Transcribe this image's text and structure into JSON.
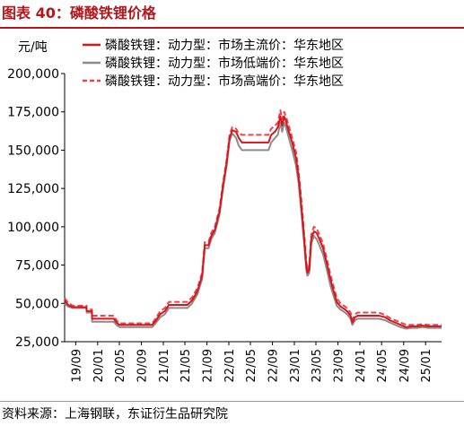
{
  "figure": {
    "title": "图表 40：磷酸铁锂价格",
    "source": "资料来源：上海钢联，东证衍生品研究院"
  },
  "colors": {
    "title": "#b4161b",
    "mainstream": "#d9161b",
    "low_end": "#8c8c8c",
    "high_end": "#f0444a",
    "axis": "#000000"
  },
  "chart_data": {
    "type": "line",
    "ylabel": "元/吨",
    "ylim": [
      25000,
      200000
    ],
    "yticks": [
      25000,
      50000,
      75000,
      100000,
      125000,
      150000,
      175000,
      200000
    ],
    "ytick_labels": [
      "25,000",
      "50,000",
      "75,000",
      "100,000",
      "125,000",
      "150,000",
      "175,000",
      "200,000"
    ],
    "xlim": [
      "2019-07-01",
      "2025-03-31"
    ],
    "xticks": [
      "2019-09-01",
      "2020-01-01",
      "2020-05-01",
      "2020-09-01",
      "2021-01-01",
      "2021-05-01",
      "2021-09-01",
      "2022-01-01",
      "2022-05-01",
      "2022-09-01",
      "2023-01-01",
      "2023-05-01",
      "2023-09-01",
      "2024-01-01",
      "2024-05-01",
      "2024-09-01",
      "2025-01-01"
    ],
    "xtick_labels": [
      "19/09",
      "20/01",
      "20/05",
      "20/09",
      "21/01",
      "21/05",
      "21/09",
      "22/01",
      "22/05",
      "22/09",
      "23/01",
      "23/05",
      "23/09",
      "24/01",
      "24/05",
      "24/09",
      "25/01"
    ],
    "grid": false,
    "legend_position": "top",
    "series": [
      {
        "name": "磷酸铁锂：动力型：市场主流价：华东地区",
        "color": "#d9161b",
        "style": "solid",
        "points": [
          [
            "2019-07-01",
            52000
          ],
          [
            "2019-07-20",
            49000
          ],
          [
            "2019-08-15",
            47500
          ],
          [
            "2019-10-31",
            47500
          ],
          [
            "2019-11-01",
            45000
          ],
          [
            "2019-11-30",
            45000
          ],
          [
            "2019-12-01",
            40000
          ],
          [
            "2020-03-31",
            40000
          ],
          [
            "2020-04-15",
            37500
          ],
          [
            "2020-05-01",
            36000
          ],
          [
            "2020-10-31",
            36000
          ],
          [
            "2020-11-15",
            38000
          ],
          [
            "2020-12-15",
            43000
          ],
          [
            "2021-01-10",
            45000
          ],
          [
            "2021-02-01",
            49000
          ],
          [
            "2021-03-10",
            49000
          ],
          [
            "2021-05-15",
            49000
          ],
          [
            "2021-06-10",
            52000
          ],
          [
            "2021-07-10",
            58000
          ],
          [
            "2021-08-05",
            68000
          ],
          [
            "2021-08-20",
            88000
          ],
          [
            "2021-09-10",
            88000
          ],
          [
            "2021-09-25",
            94000
          ],
          [
            "2021-10-15",
            98000
          ],
          [
            "2021-11-10",
            110000
          ],
          [
            "2021-12-01",
            128000
          ],
          [
            "2021-12-20",
            142000
          ],
          [
            "2022-01-05",
            158000
          ],
          [
            "2022-01-20",
            163000
          ],
          [
            "2022-02-10",
            162000
          ],
          [
            "2022-02-25",
            158000
          ],
          [
            "2022-03-15",
            155000
          ],
          [
            "2022-04-15",
            155000
          ],
          [
            "2022-06-01",
            155000
          ],
          [
            "2022-07-10",
            155000
          ],
          [
            "2022-08-10",
            155000
          ],
          [
            "2022-08-25",
            160000
          ],
          [
            "2022-09-15",
            162000
          ],
          [
            "2022-10-01",
            165000
          ],
          [
            "2022-10-15",
            172000
          ],
          [
            "2022-10-25",
            166000
          ],
          [
            "2022-11-05",
            172000
          ],
          [
            "2022-11-15",
            169000
          ],
          [
            "2022-12-01",
            162000
          ],
          [
            "2022-12-20",
            155000
          ],
          [
            "2023-01-10",
            145000
          ],
          [
            "2023-01-25",
            132000
          ],
          [
            "2023-02-10",
            112000
          ],
          [
            "2023-02-25",
            92000
          ],
          [
            "2023-03-08",
            75000
          ],
          [
            "2023-03-15",
            70000
          ],
          [
            "2023-03-25",
            72000
          ],
          [
            "2023-04-05",
            92000
          ],
          [
            "2023-04-20",
            97000
          ],
          [
            "2023-05-05",
            96000
          ],
          [
            "2023-05-20",
            92000
          ],
          [
            "2023-06-10",
            86000
          ],
          [
            "2023-07-01",
            76000
          ],
          [
            "2023-07-20",
            66000
          ],
          [
            "2023-08-10",
            57000
          ],
          [
            "2023-08-25",
            51000
          ],
          [
            "2023-09-15",
            48000
          ],
          [
            "2023-10-10",
            46000
          ],
          [
            "2023-10-25",
            44500
          ],
          [
            "2023-11-10",
            42000
          ],
          [
            "2023-11-20",
            37500
          ],
          [
            "2023-12-05",
            41000
          ],
          [
            "2023-12-20",
            42000
          ],
          [
            "2024-03-01",
            42000
          ],
          [
            "2024-04-15",
            42000
          ],
          [
            "2024-05-20",
            41000
          ],
          [
            "2024-06-15",
            39000
          ],
          [
            "2024-07-15",
            37500
          ],
          [
            "2024-08-15",
            36000
          ],
          [
            "2024-09-15",
            34500
          ],
          [
            "2024-10-15",
            35000
          ],
          [
            "2024-11-15",
            35000
          ],
          [
            "2024-12-15",
            35500
          ],
          [
            "2025-01-15",
            35000
          ],
          [
            "2025-03-31",
            35000
          ]
        ]
      },
      {
        "name": "磷酸铁锂：动力型：市场低端价：华东地区",
        "color": "#8c8c8c",
        "style": "solid",
        "points": [
          [
            "2019-07-01",
            50000
          ],
          [
            "2019-07-20",
            48000
          ],
          [
            "2019-08-15",
            47000
          ],
          [
            "2019-10-31",
            47000
          ],
          [
            "2019-11-01",
            44000
          ],
          [
            "2019-11-30",
            44000
          ],
          [
            "2019-12-01",
            38000
          ],
          [
            "2020-03-31",
            38000
          ],
          [
            "2020-04-15",
            36000
          ],
          [
            "2020-05-01",
            34500
          ],
          [
            "2020-10-31",
            34500
          ],
          [
            "2020-11-15",
            36500
          ],
          [
            "2020-12-15",
            41000
          ],
          [
            "2021-01-10",
            43000
          ],
          [
            "2021-02-01",
            47000
          ],
          [
            "2021-03-10",
            47000
          ],
          [
            "2021-05-15",
            47000
          ],
          [
            "2021-06-10",
            50000
          ],
          [
            "2021-07-10",
            56000
          ],
          [
            "2021-08-05",
            66000
          ],
          [
            "2021-08-20",
            86000
          ],
          [
            "2021-09-10",
            86000
          ],
          [
            "2021-09-25",
            92000
          ],
          [
            "2021-10-15",
            96000
          ],
          [
            "2021-11-10",
            108000
          ],
          [
            "2021-12-01",
            126000
          ],
          [
            "2021-12-20",
            140000
          ],
          [
            "2022-01-05",
            156000
          ],
          [
            "2022-01-20",
            161000
          ],
          [
            "2022-02-10",
            158000
          ],
          [
            "2022-02-25",
            153000
          ],
          [
            "2022-03-15",
            150000
          ],
          [
            "2022-04-15",
            150000
          ],
          [
            "2022-06-01",
            150000
          ],
          [
            "2022-07-10",
            150000
          ],
          [
            "2022-08-10",
            150000
          ],
          [
            "2022-08-25",
            155000
          ],
          [
            "2022-09-15",
            158000
          ],
          [
            "2022-10-01",
            160000
          ],
          [
            "2022-10-15",
            168000
          ],
          [
            "2022-10-25",
            162000
          ],
          [
            "2022-11-05",
            168000
          ],
          [
            "2022-11-15",
            165000
          ],
          [
            "2022-12-01",
            158000
          ],
          [
            "2022-12-20",
            150000
          ],
          [
            "2023-01-10",
            140000
          ],
          [
            "2023-01-25",
            128000
          ],
          [
            "2023-02-10",
            108000
          ],
          [
            "2023-02-25",
            88000
          ],
          [
            "2023-03-08",
            72000
          ],
          [
            "2023-03-15",
            68000
          ],
          [
            "2023-03-25",
            70000
          ],
          [
            "2023-04-05",
            89000
          ],
          [
            "2023-04-20",
            94000
          ],
          [
            "2023-05-05",
            92000
          ],
          [
            "2023-05-20",
            88000
          ],
          [
            "2023-06-10",
            82000
          ],
          [
            "2023-07-01",
            72000
          ],
          [
            "2023-07-20",
            62000
          ],
          [
            "2023-08-10",
            54000
          ],
          [
            "2023-08-25",
            48500
          ],
          [
            "2023-09-15",
            46000
          ],
          [
            "2023-10-10",
            44000
          ],
          [
            "2023-10-25",
            42500
          ],
          [
            "2023-11-10",
            40000
          ],
          [
            "2023-11-20",
            36000
          ],
          [
            "2023-12-05",
            39000
          ],
          [
            "2023-12-20",
            40000
          ],
          [
            "2024-03-01",
            40000
          ],
          [
            "2024-04-15",
            40000
          ],
          [
            "2024-05-20",
            39000
          ],
          [
            "2024-06-15",
            37500
          ],
          [
            "2024-07-15",
            36000
          ],
          [
            "2024-08-15",
            34500
          ],
          [
            "2024-09-15",
            33500
          ],
          [
            "2024-10-15",
            34000
          ],
          [
            "2024-11-15",
            34000
          ],
          [
            "2024-12-15",
            34500
          ],
          [
            "2025-01-15",
            34000
          ],
          [
            "2025-03-31",
            34000
          ]
        ]
      },
      {
        "name": "磷酸铁锂：动力型：市场高端价：华东地区",
        "color": "#f0444a",
        "style": "dashed",
        "points": [
          [
            "2019-07-01",
            53500
          ],
          [
            "2019-07-20",
            50500
          ],
          [
            "2019-08-15",
            48500
          ],
          [
            "2019-10-31",
            48500
          ],
          [
            "2019-11-01",
            46000
          ],
          [
            "2019-11-30",
            46000
          ],
          [
            "2019-12-01",
            42000
          ],
          [
            "2020-03-31",
            42000
          ],
          [
            "2020-04-15",
            39000
          ],
          [
            "2020-05-01",
            37000
          ],
          [
            "2020-10-31",
            37000
          ],
          [
            "2020-11-15",
            39500
          ],
          [
            "2020-12-15",
            45000
          ],
          [
            "2021-01-10",
            47000
          ],
          [
            "2021-02-01",
            51000
          ],
          [
            "2021-03-10",
            51000
          ],
          [
            "2021-05-15",
            51000
          ],
          [
            "2021-06-10",
            54000
          ],
          [
            "2021-07-10",
            60000
          ],
          [
            "2021-08-05",
            70000
          ],
          [
            "2021-08-20",
            90000
          ],
          [
            "2021-09-10",
            90000
          ],
          [
            "2021-09-25",
            96000
          ],
          [
            "2021-10-15",
            100000
          ],
          [
            "2021-11-10",
            112000
          ],
          [
            "2021-12-01",
            130000
          ],
          [
            "2021-12-20",
            144000
          ],
          [
            "2022-01-05",
            160000
          ],
          [
            "2022-01-20",
            165000
          ],
          [
            "2022-02-10",
            164000
          ],
          [
            "2022-02-25",
            161000
          ],
          [
            "2022-03-15",
            160000
          ],
          [
            "2022-04-15",
            160000
          ],
          [
            "2022-06-01",
            160000
          ],
          [
            "2022-07-10",
            160000
          ],
          [
            "2022-08-10",
            160000
          ],
          [
            "2022-08-25",
            164000
          ],
          [
            "2022-09-15",
            166000
          ],
          [
            "2022-10-01",
            168000
          ],
          [
            "2022-10-15",
            176000
          ],
          [
            "2022-10-25",
            170000
          ],
          [
            "2022-11-05",
            175000
          ],
          [
            "2022-11-15",
            172000
          ],
          [
            "2022-12-01",
            166000
          ],
          [
            "2022-12-20",
            158000
          ],
          [
            "2023-01-10",
            149000
          ],
          [
            "2023-01-25",
            136000
          ],
          [
            "2023-02-10",
            116000
          ],
          [
            "2023-02-25",
            95000
          ],
          [
            "2023-03-08",
            78000
          ],
          [
            "2023-03-15",
            72000
          ],
          [
            "2023-03-25",
            75000
          ],
          [
            "2023-04-05",
            95000
          ],
          [
            "2023-04-20",
            100000
          ],
          [
            "2023-05-05",
            99000
          ],
          [
            "2023-05-20",
            95000
          ],
          [
            "2023-06-10",
            89000
          ],
          [
            "2023-07-01",
            79000
          ],
          [
            "2023-07-20",
            69000
          ],
          [
            "2023-08-10",
            60000
          ],
          [
            "2023-08-25",
            53500
          ],
          [
            "2023-09-15",
            50000
          ],
          [
            "2023-10-10",
            48000
          ],
          [
            "2023-10-25",
            46500
          ],
          [
            "2023-11-10",
            44000
          ],
          [
            "2023-11-20",
            39500
          ],
          [
            "2023-12-05",
            43000
          ],
          [
            "2023-12-20",
            44000
          ],
          [
            "2024-03-01",
            44000
          ],
          [
            "2024-04-15",
            44000
          ],
          [
            "2024-05-20",
            42500
          ],
          [
            "2024-06-15",
            40500
          ],
          [
            "2024-07-15",
            39000
          ],
          [
            "2024-08-15",
            37500
          ],
          [
            "2024-09-15",
            36000
          ],
          [
            "2024-10-15",
            36000
          ],
          [
            "2024-11-15",
            36000
          ],
          [
            "2024-12-15",
            36500
          ],
          [
            "2025-01-15",
            36000
          ],
          [
            "2025-03-31",
            36000
          ]
        ]
      }
    ]
  }
}
